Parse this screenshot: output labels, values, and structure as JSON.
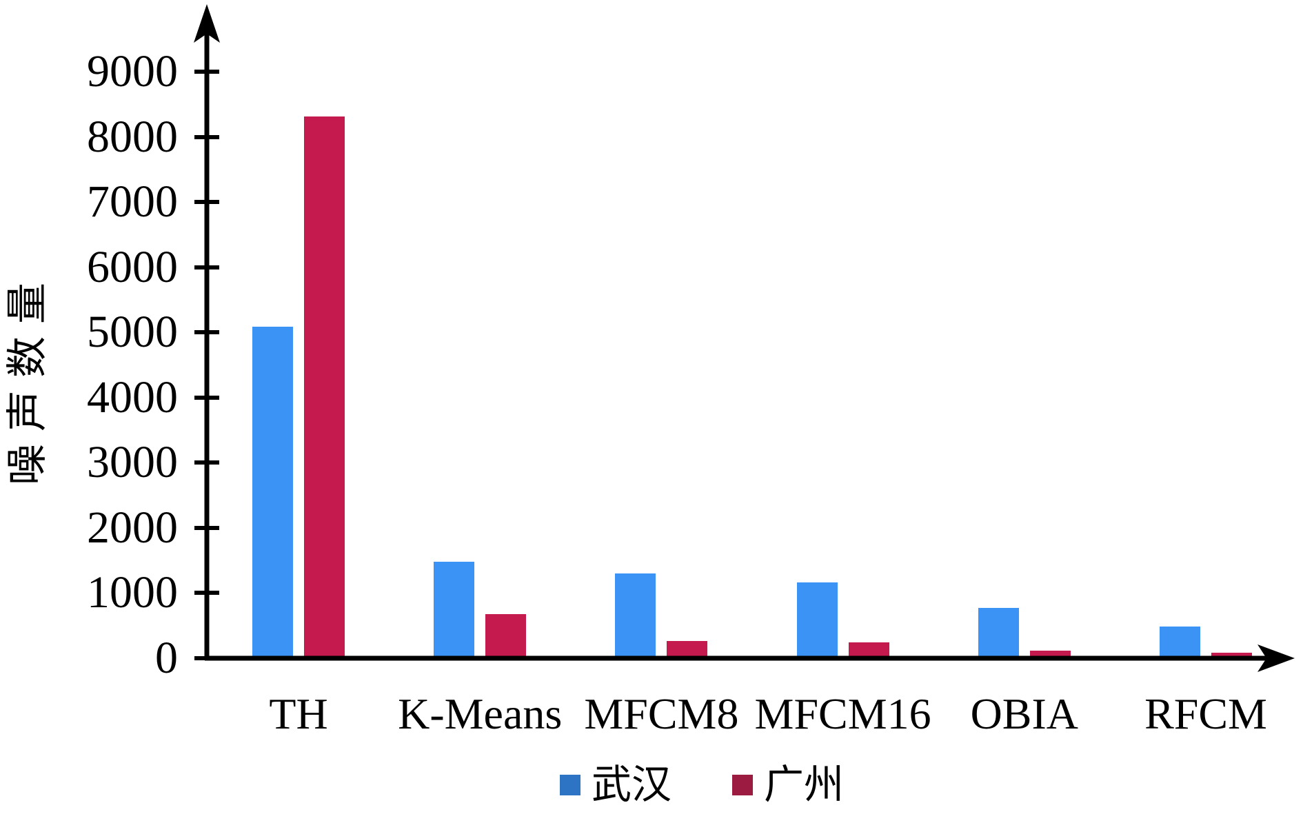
{
  "chart_data": {
    "type": "bar",
    "title": "",
    "ylabel": "噪声数量",
    "xlabel": "",
    "categories": [
      "TH",
      "K-Means",
      "MFCM8",
      "MFCM16",
      "OBIA",
      "RFCM"
    ],
    "series": [
      {
        "name": "武汉",
        "color": "#3B93F5",
        "legend_color": "#2E74C4",
        "values": [
          5050,
          1450,
          1270,
          1130,
          740,
          450
        ]
      },
      {
        "name": "广州",
        "color": "#C51A4D",
        "legend_color": "#9C1B41",
        "values": [
          8280,
          640,
          230,
          210,
          80,
          50
        ]
      }
    ],
    "ylim": [
      0,
      9000
    ],
    "y_ticks": [
      0,
      1000,
      2000,
      3000,
      4000,
      5000,
      6000,
      7000,
      8000,
      9000
    ],
    "grid": false,
    "legend_position": "bottom",
    "axis_color": "#000000",
    "background_color": "#FFFFFF"
  }
}
